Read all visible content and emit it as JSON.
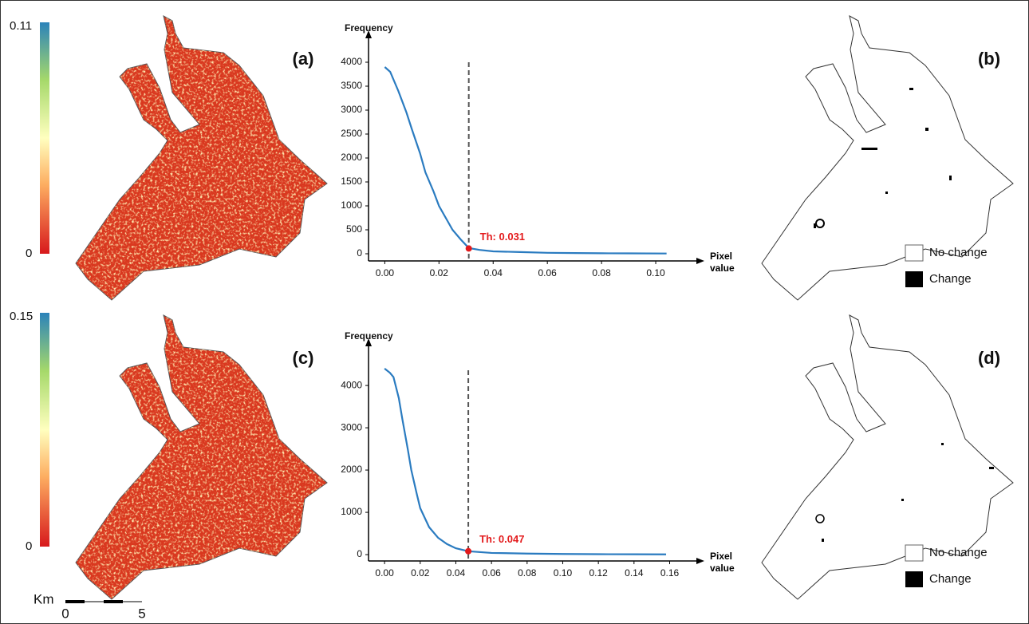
{
  "chart_data": [
    {
      "type": "line",
      "y_label": "Frequency",
      "x_label": "Pixel value",
      "x": [
        0,
        0.002,
        0.005,
        0.008,
        0.01,
        0.013,
        0.015,
        0.018,
        0.02,
        0.023,
        0.025,
        0.028,
        0.031,
        0.035,
        0.04,
        0.05,
        0.06,
        0.07,
        0.08,
        0.09,
        0.104
      ],
      "values": [
        3900,
        3800,
        3400,
        2950,
        2600,
        2100,
        1700,
        1300,
        1000,
        700,
        500,
        300,
        120,
        80,
        50,
        35,
        20,
        15,
        10,
        8,
        5
      ],
      "color": "#2a7bc0",
      "xlim": [
        -0.006,
        0.115
      ],
      "ylim": [
        -150,
        4300
      ],
      "xticks": [
        {
          "value": 0,
          "label": "0.00"
        },
        0.02,
        0.04,
        0.06,
        0.08,
        {
          "value": 0.1,
          "label": "0.10"
        }
      ],
      "yticks": [
        0,
        500,
        1000,
        1500,
        2000,
        2500,
        3000,
        3500,
        4000
      ],
      "threshold": {
        "value": 0.031,
        "frequency": 110,
        "label": "Th: 0.031",
        "color": "#e31a1c"
      }
    },
    {
      "type": "line",
      "y_label": "Frequency",
      "x_label": "Pixel value",
      "x": [
        0,
        0.003,
        0.005,
        0.008,
        0.01,
        0.013,
        0.015,
        0.018,
        0.02,
        0.025,
        0.03,
        0.035,
        0.04,
        0.047,
        0.06,
        0.08,
        0.1,
        0.12,
        0.14,
        0.158
      ],
      "values": [
        4400,
        4300,
        4200,
        3700,
        3200,
        2500,
        2000,
        1450,
        1100,
        650,
        400,
        250,
        150,
        80,
        40,
        25,
        15,
        10,
        8,
        5
      ],
      "color": "#2a7bc0",
      "xlim": [
        -0.009,
        0.175
      ],
      "ylim": [
        -150,
        4700
      ],
      "xticks": [
        {
          "value": 0,
          "label": "0.00"
        },
        0.02,
        0.04,
        0.06,
        0.08,
        {
          "value": 0.1,
          "label": "0.10"
        },
        0.12,
        0.14,
        0.16
      ],
      "yticks": [
        0,
        1000,
        2000,
        3000,
        4000
      ],
      "threshold": {
        "value": 0.047,
        "frequency": 80,
        "label": "Th: 0.047",
        "color": "#e31a1c"
      }
    }
  ],
  "panels": [
    "(a)",
    "(b)",
    "(c)",
    "(d)"
  ],
  "colorbars": [
    {
      "max": 0.11,
      "min": 0
    },
    {
      "max": 0.15,
      "min": 0
    }
  ],
  "legends": [
    [
      "No change",
      "Change"
    ],
    [
      "No change",
      "Change"
    ]
  ],
  "scale_bar": {
    "unit": "Km",
    "ticks": [
      0,
      5
    ]
  }
}
